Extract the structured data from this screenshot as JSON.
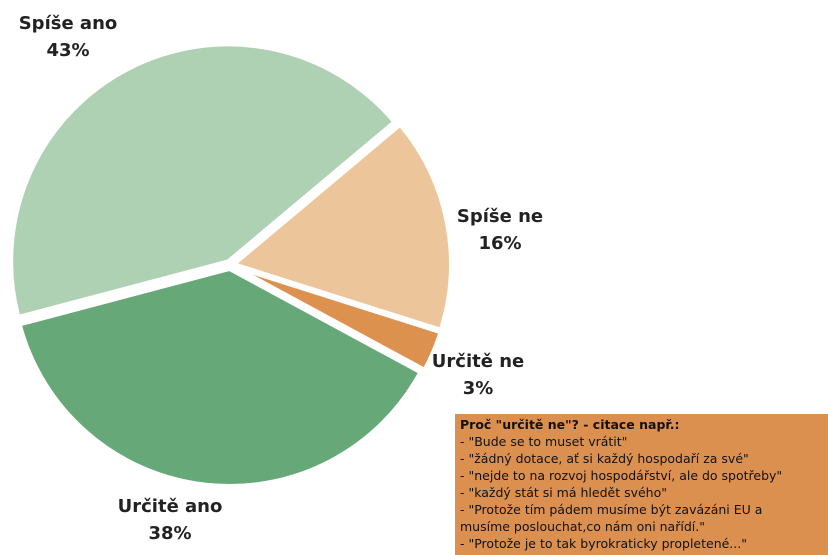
{
  "chart_data": {
    "type": "pie",
    "categories": [
      "Spíše ne",
      "Určitě ne",
      "Určitě ano",
      "Spíše ano"
    ],
    "values": [
      16,
      3,
      38,
      43
    ],
    "value_labels": [
      "16%",
      "3%",
      "38%",
      "43%"
    ],
    "colors": [
      "#ecc59a",
      "#dd914e",
      "#67a878",
      "#aed0b3"
    ],
    "annotation": {
      "title": "Proč \"určitě ne\"? - citace např.:",
      "lines": [
        "- \"Bude se to muset vrátit\"",
        "- \"žádný dotace, ať si každý hospodaří za své\"",
        "- \"nejde to na rozvoj hospodářství, ale do spotřeby\"",
        "- \"každý stát si má hledět svého\"",
        "- \"Protože tím pádem musíme být zavázáni EU a",
        "musíme poslouchat,co nám oni nařídí.\"",
        "- \"Protože je to tak byrokraticky propletené...\""
      ]
    }
  }
}
